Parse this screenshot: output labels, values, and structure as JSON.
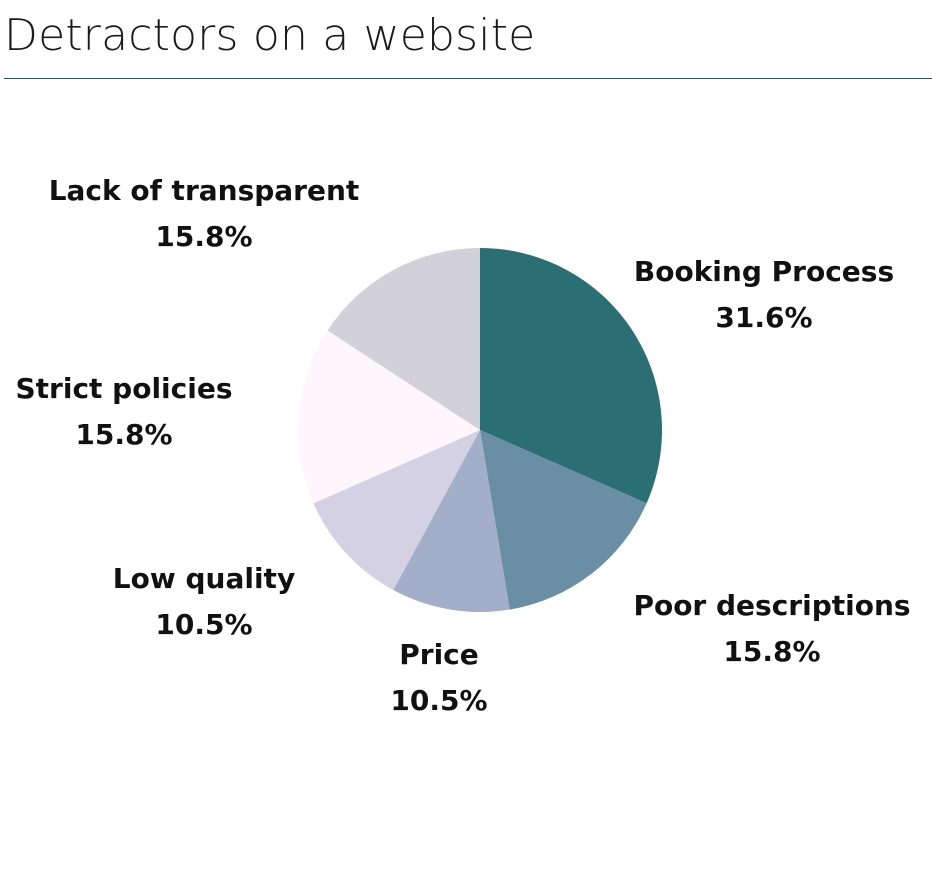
{
  "title": "Detractors on a website",
  "chart_data": {
    "type": "pie",
    "title": "Detractors on a website",
    "start": "12 o'clock",
    "direction": "clockwise",
    "legend": "none",
    "slices": [
      {
        "label": "Booking Process",
        "value": 31.6,
        "value_label": "31.6%",
        "color": "#2b6f74"
      },
      {
        "label": "Poor descriptions",
        "value": 15.8,
        "value_label": "15.8%",
        "color": "#6a8fa5"
      },
      {
        "label": "Price",
        "value": 10.5,
        "value_label": "10.5%",
        "color": "#a3aec8"
      },
      {
        "label": "Low quality",
        "value": 10.5,
        "value_label": "10.5%",
        "color": "#d3d1e3"
      },
      {
        "label": "Strict policies",
        "value": 15.8,
        "value_label": "15.8%",
        "color": "#fdf6fd"
      },
      {
        "label": "Lack of transparent",
        "value": 15.8,
        "value_label": "15.8%",
        "color": "#d2d0d8"
      }
    ]
  }
}
